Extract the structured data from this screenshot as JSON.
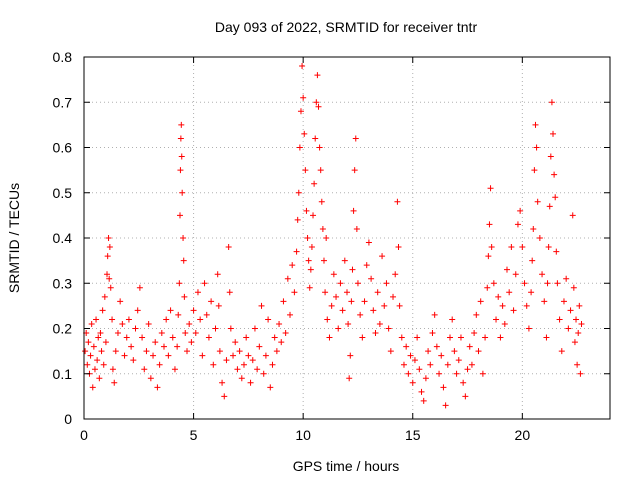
{
  "chart_data": {
    "type": "scatter",
    "title": "Day 093 of 2022, SRMTID for receiver tntr",
    "xlabel": "GPS time / hours",
    "ylabel": "SRMTID / TECUs",
    "xlim": [
      0,
      24
    ],
    "ylim": [
      0,
      0.8
    ],
    "x_ticks": [
      0,
      5,
      10,
      15,
      20
    ],
    "x_tick_labels": [
      "0",
      "5",
      "10",
      "15",
      "20"
    ],
    "y_ticks": [
      0,
      0.1,
      0.2,
      0.3,
      0.4,
      0.5,
      0.6,
      0.7,
      0.8
    ],
    "y_tick_labels": [
      "0",
      "0.1",
      "0.2",
      "0.3",
      "0.4",
      "0.5",
      "0.6",
      "0.7",
      "0.8"
    ],
    "grid": true,
    "marker": "+",
    "marker_color": "#ff0000",
    "series": [
      {
        "name": "SRMTID",
        "points": [
          [
            0.05,
            0.15
          ],
          [
            0.1,
            0.19
          ],
          [
            0.15,
            0.12
          ],
          [
            0.2,
            0.17
          ],
          [
            0.25,
            0.1
          ],
          [
            0.3,
            0.14
          ],
          [
            0.35,
            0.21
          ],
          [
            0.4,
            0.07
          ],
          [
            0.45,
            0.16
          ],
          [
            0.5,
            0.11
          ],
          [
            0.55,
            0.22
          ],
          [
            0.6,
            0.13
          ],
          [
            0.65,
            0.18
          ],
          [
            0.7,
            0.09
          ],
          [
            0.75,
            0.19
          ],
          [
            0.8,
            0.15
          ],
          [
            0.85,
            0.24
          ],
          [
            0.9,
            0.12
          ],
          [
            0.95,
            0.27
          ],
          [
            1.0,
            0.17
          ],
          [
            1.05,
            0.32
          ],
          [
            1.08,
            0.36
          ],
          [
            1.12,
            0.4
          ],
          [
            1.15,
            0.31
          ],
          [
            1.18,
            0.38
          ],
          [
            1.22,
            0.29
          ],
          [
            1.28,
            0.22
          ],
          [
            1.32,
            0.11
          ],
          [
            1.38,
            0.08
          ],
          [
            1.45,
            0.15
          ],
          [
            1.55,
            0.19
          ],
          [
            1.65,
            0.26
          ],
          [
            1.75,
            0.21
          ],
          [
            1.85,
            0.14
          ],
          [
            1.95,
            0.18
          ],
          [
            2.05,
            0.22
          ],
          [
            2.15,
            0.16
          ],
          [
            2.25,
            0.13
          ],
          [
            2.35,
            0.2
          ],
          [
            2.45,
            0.24
          ],
          [
            2.55,
            0.29
          ],
          [
            2.65,
            0.18
          ],
          [
            2.75,
            0.11
          ],
          [
            2.85,
            0.15
          ],
          [
            2.95,
            0.21
          ],
          [
            3.05,
            0.09
          ],
          [
            3.15,
            0.14
          ],
          [
            3.25,
            0.17
          ],
          [
            3.35,
            0.07
          ],
          [
            3.45,
            0.12
          ],
          [
            3.55,
            0.19
          ],
          [
            3.65,
            0.16
          ],
          [
            3.75,
            0.22
          ],
          [
            3.85,
            0.14
          ],
          [
            3.95,
            0.24
          ],
          [
            4.05,
            0.18
          ],
          [
            4.15,
            0.11
          ],
          [
            4.25,
            0.16
          ],
          [
            4.3,
            0.23
          ],
          [
            4.35,
            0.3
          ],
          [
            4.38,
            0.45
          ],
          [
            4.4,
            0.55
          ],
          [
            4.42,
            0.62
          ],
          [
            4.44,
            0.65
          ],
          [
            4.46,
            0.58
          ],
          [
            4.48,
            0.5
          ],
          [
            4.52,
            0.4
          ],
          [
            4.55,
            0.35
          ],
          [
            4.58,
            0.27
          ],
          [
            4.62,
            0.19
          ],
          [
            4.7,
            0.15
          ],
          [
            4.8,
            0.21
          ],
          [
            4.9,
            0.17
          ],
          [
            5.0,
            0.24
          ],
          [
            5.1,
            0.19
          ],
          [
            5.2,
            0.28
          ],
          [
            5.3,
            0.22
          ],
          [
            5.4,
            0.14
          ],
          [
            5.5,
            0.3
          ],
          [
            5.6,
            0.23
          ],
          [
            5.7,
            0.18
          ],
          [
            5.8,
            0.26
          ],
          [
            5.9,
            0.12
          ],
          [
            6.0,
            0.2
          ],
          [
            6.1,
            0.32
          ],
          [
            6.15,
            0.25
          ],
          [
            6.2,
            0.15
          ],
          [
            6.3,
            0.08
          ],
          [
            6.4,
            0.05
          ],
          [
            6.5,
            0.13
          ],
          [
            6.6,
            0.38
          ],
          [
            6.65,
            0.28
          ],
          [
            6.7,
            0.2
          ],
          [
            6.8,
            0.14
          ],
          [
            6.9,
            0.17
          ],
          [
            7.0,
            0.11
          ],
          [
            7.1,
            0.15
          ],
          [
            7.2,
            0.09
          ],
          [
            7.3,
            0.12
          ],
          [
            7.4,
            0.18
          ],
          [
            7.5,
            0.14
          ],
          [
            7.6,
            0.08
          ],
          [
            7.7,
            0.13
          ],
          [
            7.8,
            0.2
          ],
          [
            7.9,
            0.11
          ],
          [
            8.0,
            0.16
          ],
          [
            8.1,
            0.25
          ],
          [
            8.2,
            0.1
          ],
          [
            8.3,
            0.14
          ],
          [
            8.4,
            0.22
          ],
          [
            8.5,
            0.07
          ],
          [
            8.6,
            0.12
          ],
          [
            8.7,
            0.18
          ],
          [
            8.8,
            0.15
          ],
          [
            8.9,
            0.21
          ],
          [
            9.0,
            0.17
          ],
          [
            9.1,
            0.26
          ],
          [
            9.2,
            0.19
          ],
          [
            9.3,
            0.31
          ],
          [
            9.4,
            0.23
          ],
          [
            9.5,
            0.34
          ],
          [
            9.6,
            0.28
          ],
          [
            9.7,
            0.37
          ],
          [
            9.75,
            0.44
          ],
          [
            9.8,
            0.5
          ],
          [
            9.85,
            0.6
          ],
          [
            9.9,
            0.68
          ],
          [
            9.95,
            0.78
          ],
          [
            10.0,
            0.71
          ],
          [
            10.05,
            0.63
          ],
          [
            10.1,
            0.55
          ],
          [
            10.15,
            0.46
          ],
          [
            10.2,
            0.4
          ],
          [
            10.25,
            0.35
          ],
          [
            10.3,
            0.29
          ],
          [
            10.35,
            0.33
          ],
          [
            10.4,
            0.38
          ],
          [
            10.45,
            0.45
          ],
          [
            10.5,
            0.52
          ],
          [
            10.55,
            0.62
          ],
          [
            10.6,
            0.7
          ],
          [
            10.65,
            0.76
          ],
          [
            10.7,
            0.69
          ],
          [
            10.75,
            0.6
          ],
          [
            10.8,
            0.55
          ],
          [
            10.85,
            0.48
          ],
          [
            10.9,
            0.42
          ],
          [
            10.95,
            0.35
          ],
          [
            11.0,
            0.28
          ],
          [
            11.05,
            0.4
          ],
          [
            11.1,
            0.22
          ],
          [
            11.2,
            0.18
          ],
          [
            11.3,
            0.25
          ],
          [
            11.4,
            0.32
          ],
          [
            11.5,
            0.27
          ],
          [
            11.6,
            0.2
          ],
          [
            11.7,
            0.3
          ],
          [
            11.8,
            0.24
          ],
          [
            11.9,
            0.35
          ],
          [
            12.0,
            0.28
          ],
          [
            12.05,
            0.21
          ],
          [
            12.1,
            0.09
          ],
          [
            12.15,
            0.14
          ],
          [
            12.2,
            0.26
          ],
          [
            12.25,
            0.33
          ],
          [
            12.3,
            0.46
          ],
          [
            12.35,
            0.55
          ],
          [
            12.4,
            0.62
          ],
          [
            12.45,
            0.42
          ],
          [
            12.5,
            0.3
          ],
          [
            12.6,
            0.23
          ],
          [
            12.7,
            0.18
          ],
          [
            12.8,
            0.26
          ],
          [
            12.9,
            0.34
          ],
          [
            13.0,
            0.39
          ],
          [
            13.1,
            0.31
          ],
          [
            13.2,
            0.24
          ],
          [
            13.3,
            0.19
          ],
          [
            13.4,
            0.28
          ],
          [
            13.5,
            0.21
          ],
          [
            13.6,
            0.36
          ],
          [
            13.7,
            0.25
          ],
          [
            13.8,
            0.3
          ],
          [
            13.9,
            0.2
          ],
          [
            14.0,
            0.15
          ],
          [
            14.1,
            0.27
          ],
          [
            14.2,
            0.32
          ],
          [
            14.3,
            0.48
          ],
          [
            14.35,
            0.38
          ],
          [
            14.4,
            0.25
          ],
          [
            14.5,
            0.18
          ],
          [
            14.6,
            0.12
          ],
          [
            14.7,
            0.16
          ],
          [
            14.8,
            0.1
          ],
          [
            14.9,
            0.14
          ],
          [
            15.0,
            0.08
          ],
          [
            15.1,
            0.13
          ],
          [
            15.2,
            0.18
          ],
          [
            15.3,
            0.11
          ],
          [
            15.4,
            0.06
          ],
          [
            15.5,
            0.04
          ],
          [
            15.6,
            0.09
          ],
          [
            15.7,
            0.15
          ],
          [
            15.8,
            0.12
          ],
          [
            15.9,
            0.19
          ],
          [
            16.0,
            0.23
          ],
          [
            16.1,
            0.16
          ],
          [
            16.2,
            0.1
          ],
          [
            16.3,
            0.14
          ],
          [
            16.4,
            0.07
          ],
          [
            16.5,
            0.03
          ],
          [
            16.6,
            0.12
          ],
          [
            16.7,
            0.18
          ],
          [
            16.8,
            0.22
          ],
          [
            16.9,
            0.15
          ],
          [
            17.0,
            0.1
          ],
          [
            17.1,
            0.13
          ],
          [
            17.2,
            0.18
          ],
          [
            17.3,
            0.08
          ],
          [
            17.4,
            0.05
          ],
          [
            17.5,
            0.11
          ],
          [
            17.6,
            0.16
          ],
          [
            17.7,
            0.12
          ],
          [
            17.8,
            0.19
          ],
          [
            17.9,
            0.23
          ],
          [
            18.0,
            0.15
          ],
          [
            18.1,
            0.26
          ],
          [
            18.2,
            0.1
          ],
          [
            18.3,
            0.18
          ],
          [
            18.4,
            0.29
          ],
          [
            18.45,
            0.36
          ],
          [
            18.5,
            0.43
          ],
          [
            18.55,
            0.51
          ],
          [
            18.6,
            0.38
          ],
          [
            18.7,
            0.3
          ],
          [
            18.8,
            0.22
          ],
          [
            18.9,
            0.27
          ],
          [
            19.0,
            0.18
          ],
          [
            19.1,
            0.25
          ],
          [
            19.2,
            0.21
          ],
          [
            19.3,
            0.33
          ],
          [
            19.4,
            0.28
          ],
          [
            19.5,
            0.38
          ],
          [
            19.6,
            0.24
          ],
          [
            19.7,
            0.32
          ],
          [
            19.8,
            0.43
          ],
          [
            19.9,
            0.46
          ],
          [
            20.0,
            0.38
          ],
          [
            20.1,
            0.3
          ],
          [
            20.2,
            0.25
          ],
          [
            20.3,
            0.2
          ],
          [
            20.4,
            0.28
          ],
          [
            20.45,
            0.35
          ],
          [
            20.5,
            0.42
          ],
          [
            20.55,
            0.55
          ],
          [
            20.6,
            0.65
          ],
          [
            20.65,
            0.6
          ],
          [
            20.7,
            0.48
          ],
          [
            20.8,
            0.4
          ],
          [
            20.9,
            0.32
          ],
          [
            21.0,
            0.26
          ],
          [
            21.1,
            0.18
          ],
          [
            21.15,
            0.3
          ],
          [
            21.2,
            0.38
          ],
          [
            21.25,
            0.47
          ],
          [
            21.3,
            0.58
          ],
          [
            21.35,
            0.7
          ],
          [
            21.4,
            0.63
          ],
          [
            21.45,
            0.54
          ],
          [
            21.5,
            0.49
          ],
          [
            21.55,
            0.37
          ],
          [
            21.6,
            0.3
          ],
          [
            21.7,
            0.22
          ],
          [
            21.8,
            0.15
          ],
          [
            21.9,
            0.26
          ],
          [
            22.0,
            0.31
          ],
          [
            22.1,
            0.2
          ],
          [
            22.2,
            0.24
          ],
          [
            22.3,
            0.45
          ],
          [
            22.35,
            0.29
          ],
          [
            22.4,
            0.17
          ],
          [
            22.45,
            0.22
          ],
          [
            22.5,
            0.12
          ],
          [
            22.55,
            0.19
          ],
          [
            22.6,
            0.25
          ],
          [
            22.65,
            0.1
          ],
          [
            22.7,
            0.21
          ]
        ]
      }
    ]
  }
}
